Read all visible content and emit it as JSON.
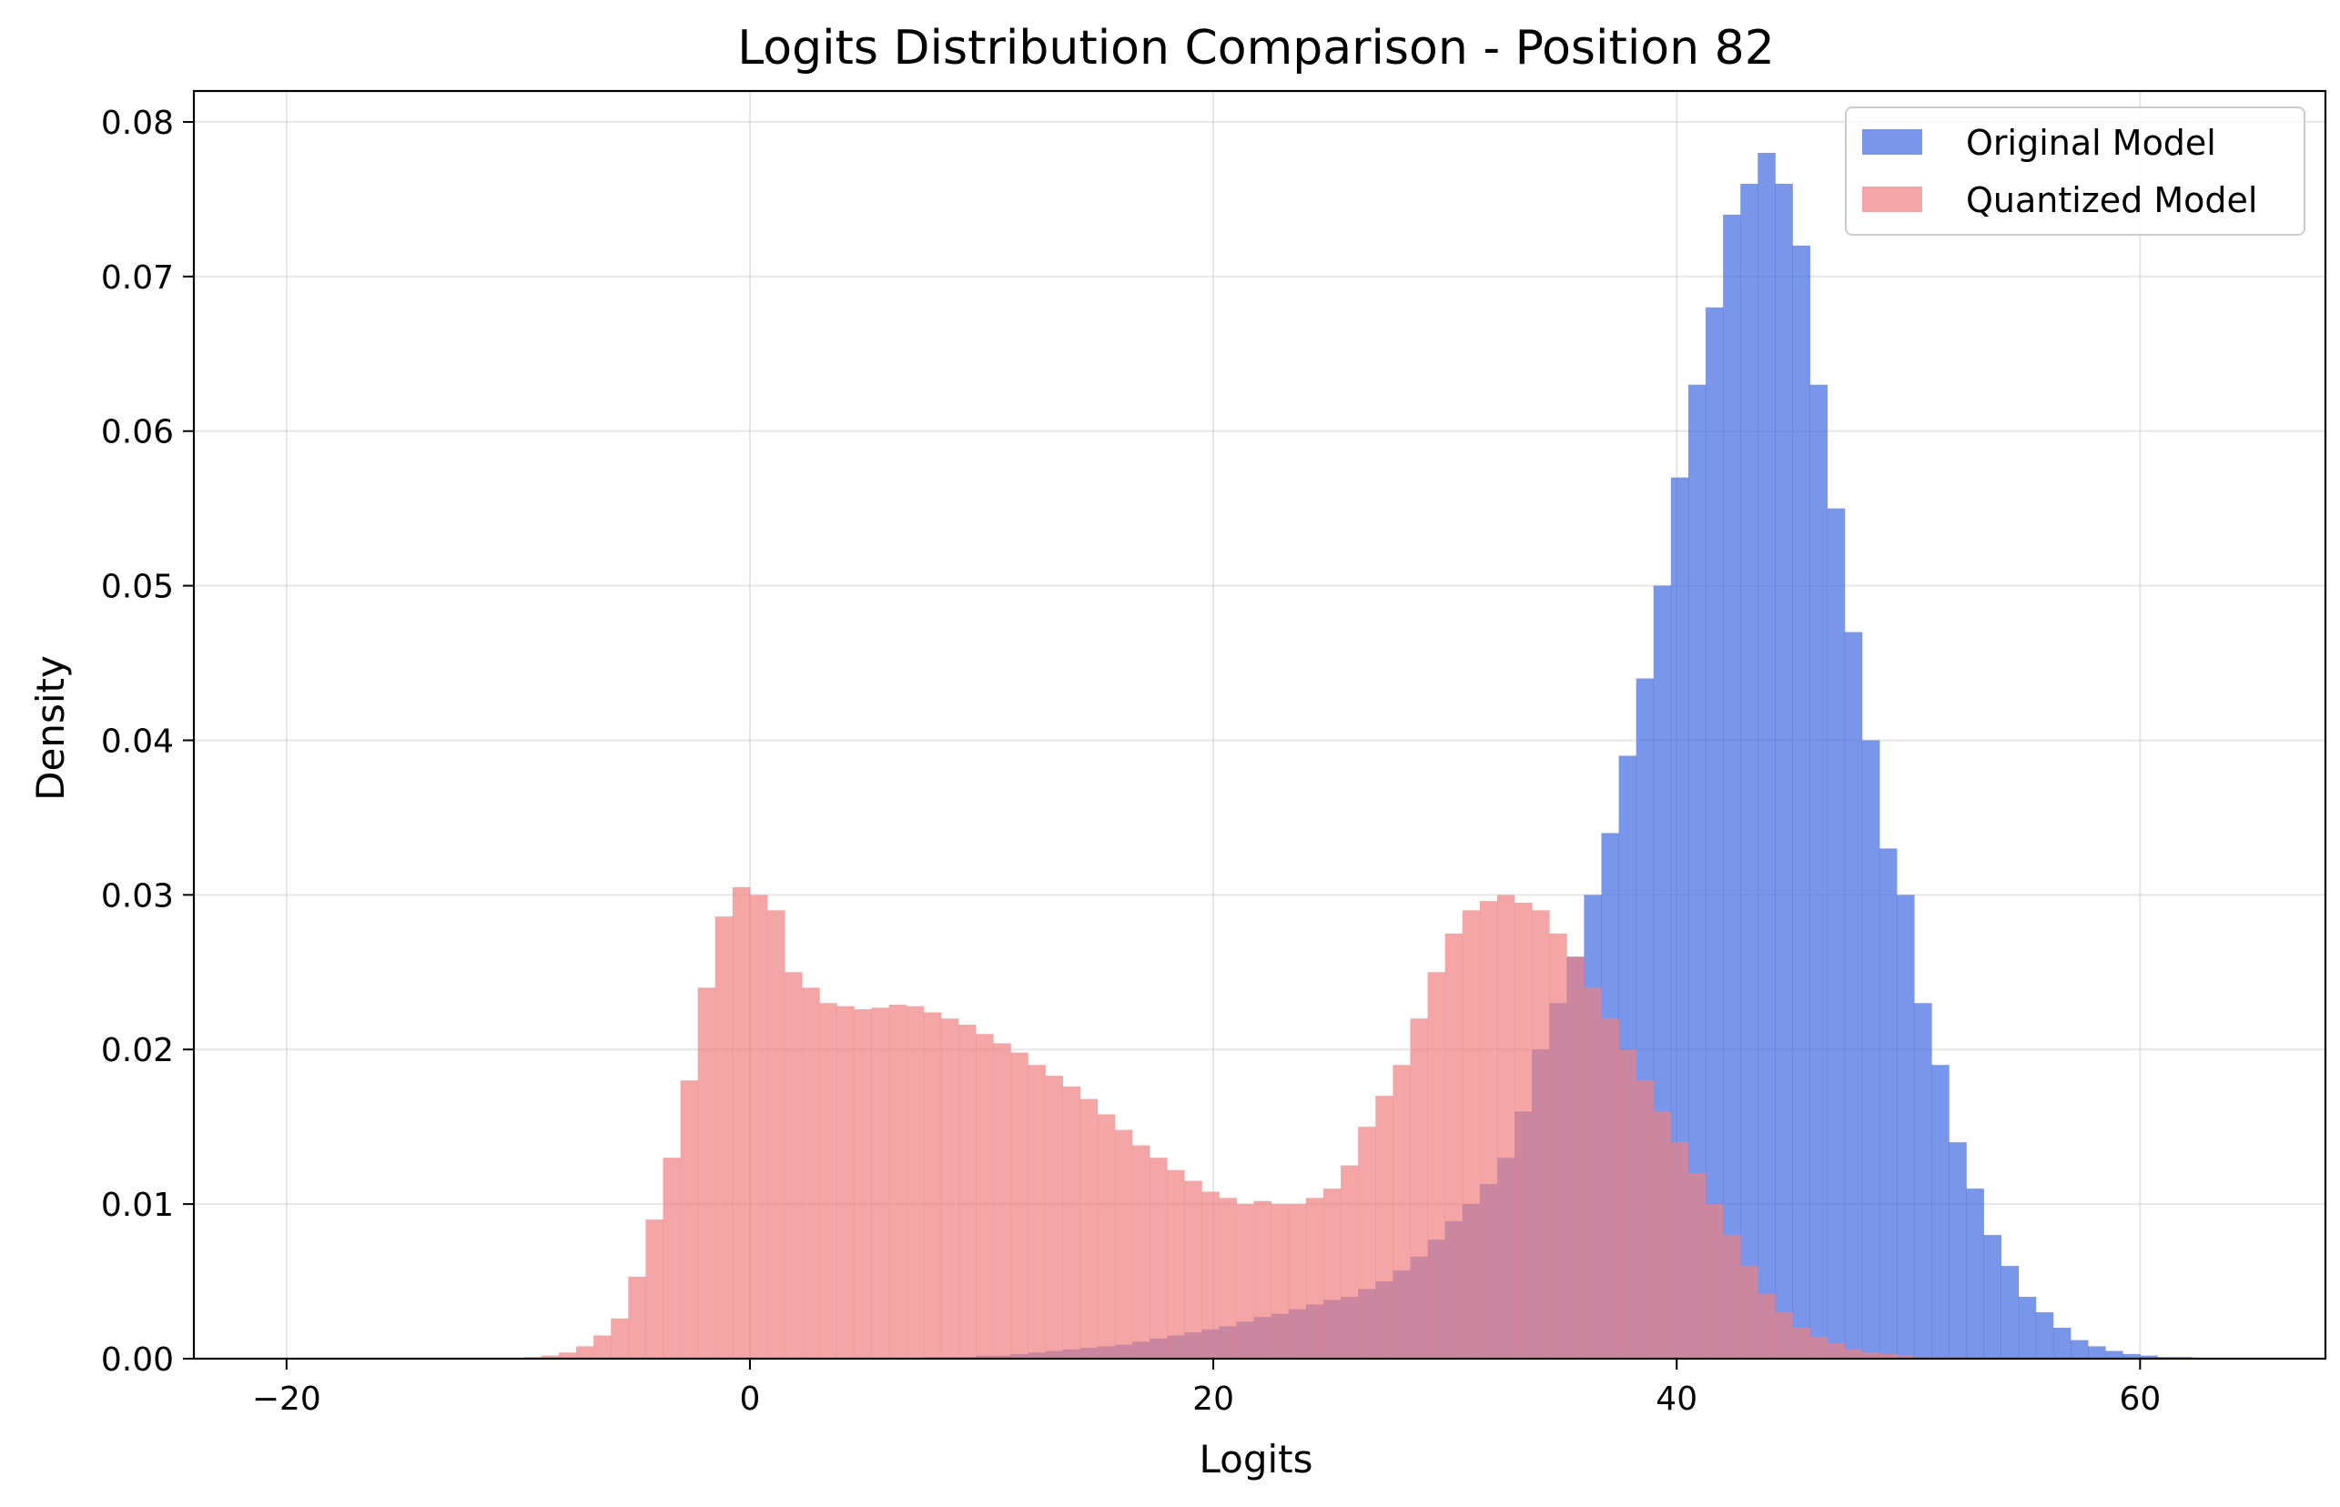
{
  "chart_data": {
    "type": "histogram",
    "title": "Logits Distribution Comparison - Position 82",
    "xlabel": "Logits",
    "ylabel": "Density",
    "xlim": [
      -24,
      68
    ],
    "ylim": [
      0,
      0.082
    ],
    "x_ticks": [
      -20,
      0,
      20,
      40,
      60
    ],
    "x_tick_labels": [
      "−20",
      "0",
      "20",
      "40",
      "60"
    ],
    "y_ticks": [
      0.0,
      0.01,
      0.02,
      0.03,
      0.04,
      0.05,
      0.06,
      0.07,
      0.08
    ],
    "y_tick_labels": [
      "0.00",
      "0.01",
      "0.02",
      "0.03",
      "0.04",
      "0.05",
      "0.06",
      "0.07",
      "0.08"
    ],
    "grid": true,
    "legend_position": "top-right",
    "bin_start": -24,
    "bin_width": 0.75,
    "series": [
      {
        "name": "Original Model",
        "color": "#4169e1",
        "opacity": 0.7,
        "values": [
          0,
          0,
          0,
          0,
          0,
          0,
          0,
          0,
          0,
          0,
          0,
          0,
          0,
          0,
          0,
          0,
          0,
          0,
          0,
          0,
          0,
          0,
          0,
          0,
          0,
          0,
          0,
          0,
          0,
          0,
          0,
          0,
          0,
          0,
          0,
          0,
          0,
          0,
          0,
          0,
          0,
          0,
          0.0001,
          0.0001,
          0.0001,
          0.0002,
          0.0002,
          0.0003,
          0.0004,
          0.0005,
          0.0006,
          0.0007,
          0.0008,
          0.0009,
          0.0011,
          0.0013,
          0.0015,
          0.0017,
          0.0019,
          0.0021,
          0.0024,
          0.0027,
          0.0029,
          0.0032,
          0.0035,
          0.0038,
          0.004,
          0.0045,
          0.005,
          0.0057,
          0.0066,
          0.0077,
          0.0089,
          0.01,
          0.0113,
          0.013,
          0.016,
          0.02,
          0.023,
          0.026,
          0.03,
          0.034,
          0.039,
          0.044,
          0.05,
          0.057,
          0.063,
          0.068,
          0.074,
          0.076,
          0.078,
          0.076,
          0.072,
          0.063,
          0.055,
          0.047,
          0.04,
          0.033,
          0.03,
          0.023,
          0.019,
          0.014,
          0.011,
          0.008,
          0.006,
          0.004,
          0.003,
          0.002,
          0.0012,
          0.0008,
          0.0005,
          0.0003,
          0.0002,
          0.0001,
          0.0001,
          0,
          0,
          0,
          0,
          0,
          0,
          0,
          0
        ]
      },
      {
        "name": "Quantized Model",
        "color": "#f08080",
        "opacity": 0.7,
        "values": [
          0,
          0,
          0,
          0,
          0,
          0,
          0,
          0,
          0,
          0,
          0,
          0,
          0,
          0,
          0,
          0,
          0,
          0,
          0,
          0.0001,
          0.0002,
          0.0004,
          0.0008,
          0.0015,
          0.0026,
          0.0053,
          0.009,
          0.013,
          0.018,
          0.024,
          0.0286,
          0.0305,
          0.03,
          0.029,
          0.025,
          0.024,
          0.023,
          0.0228,
          0.0226,
          0.0227,
          0.0229,
          0.0228,
          0.0224,
          0.022,
          0.0216,
          0.021,
          0.0204,
          0.0198,
          0.019,
          0.0183,
          0.0176,
          0.0168,
          0.0158,
          0.0148,
          0.0138,
          0.013,
          0.0122,
          0.0115,
          0.0108,
          0.0104,
          0.01,
          0.0102,
          0.01,
          0.01,
          0.0104,
          0.011,
          0.0125,
          0.015,
          0.017,
          0.019,
          0.022,
          0.025,
          0.0275,
          0.029,
          0.0296,
          0.03,
          0.0295,
          0.029,
          0.0275,
          0.026,
          0.024,
          0.022,
          0.02,
          0.018,
          0.016,
          0.014,
          0.012,
          0.01,
          0.008,
          0.006,
          0.0042,
          0.003,
          0.002,
          0.0014,
          0.001,
          0.0006,
          0.0004,
          0.0003,
          0.0002,
          0.0001,
          0.0001,
          0.0001,
          0,
          0,
          0,
          0,
          0,
          0,
          0,
          0
        ]
      }
    ]
  }
}
